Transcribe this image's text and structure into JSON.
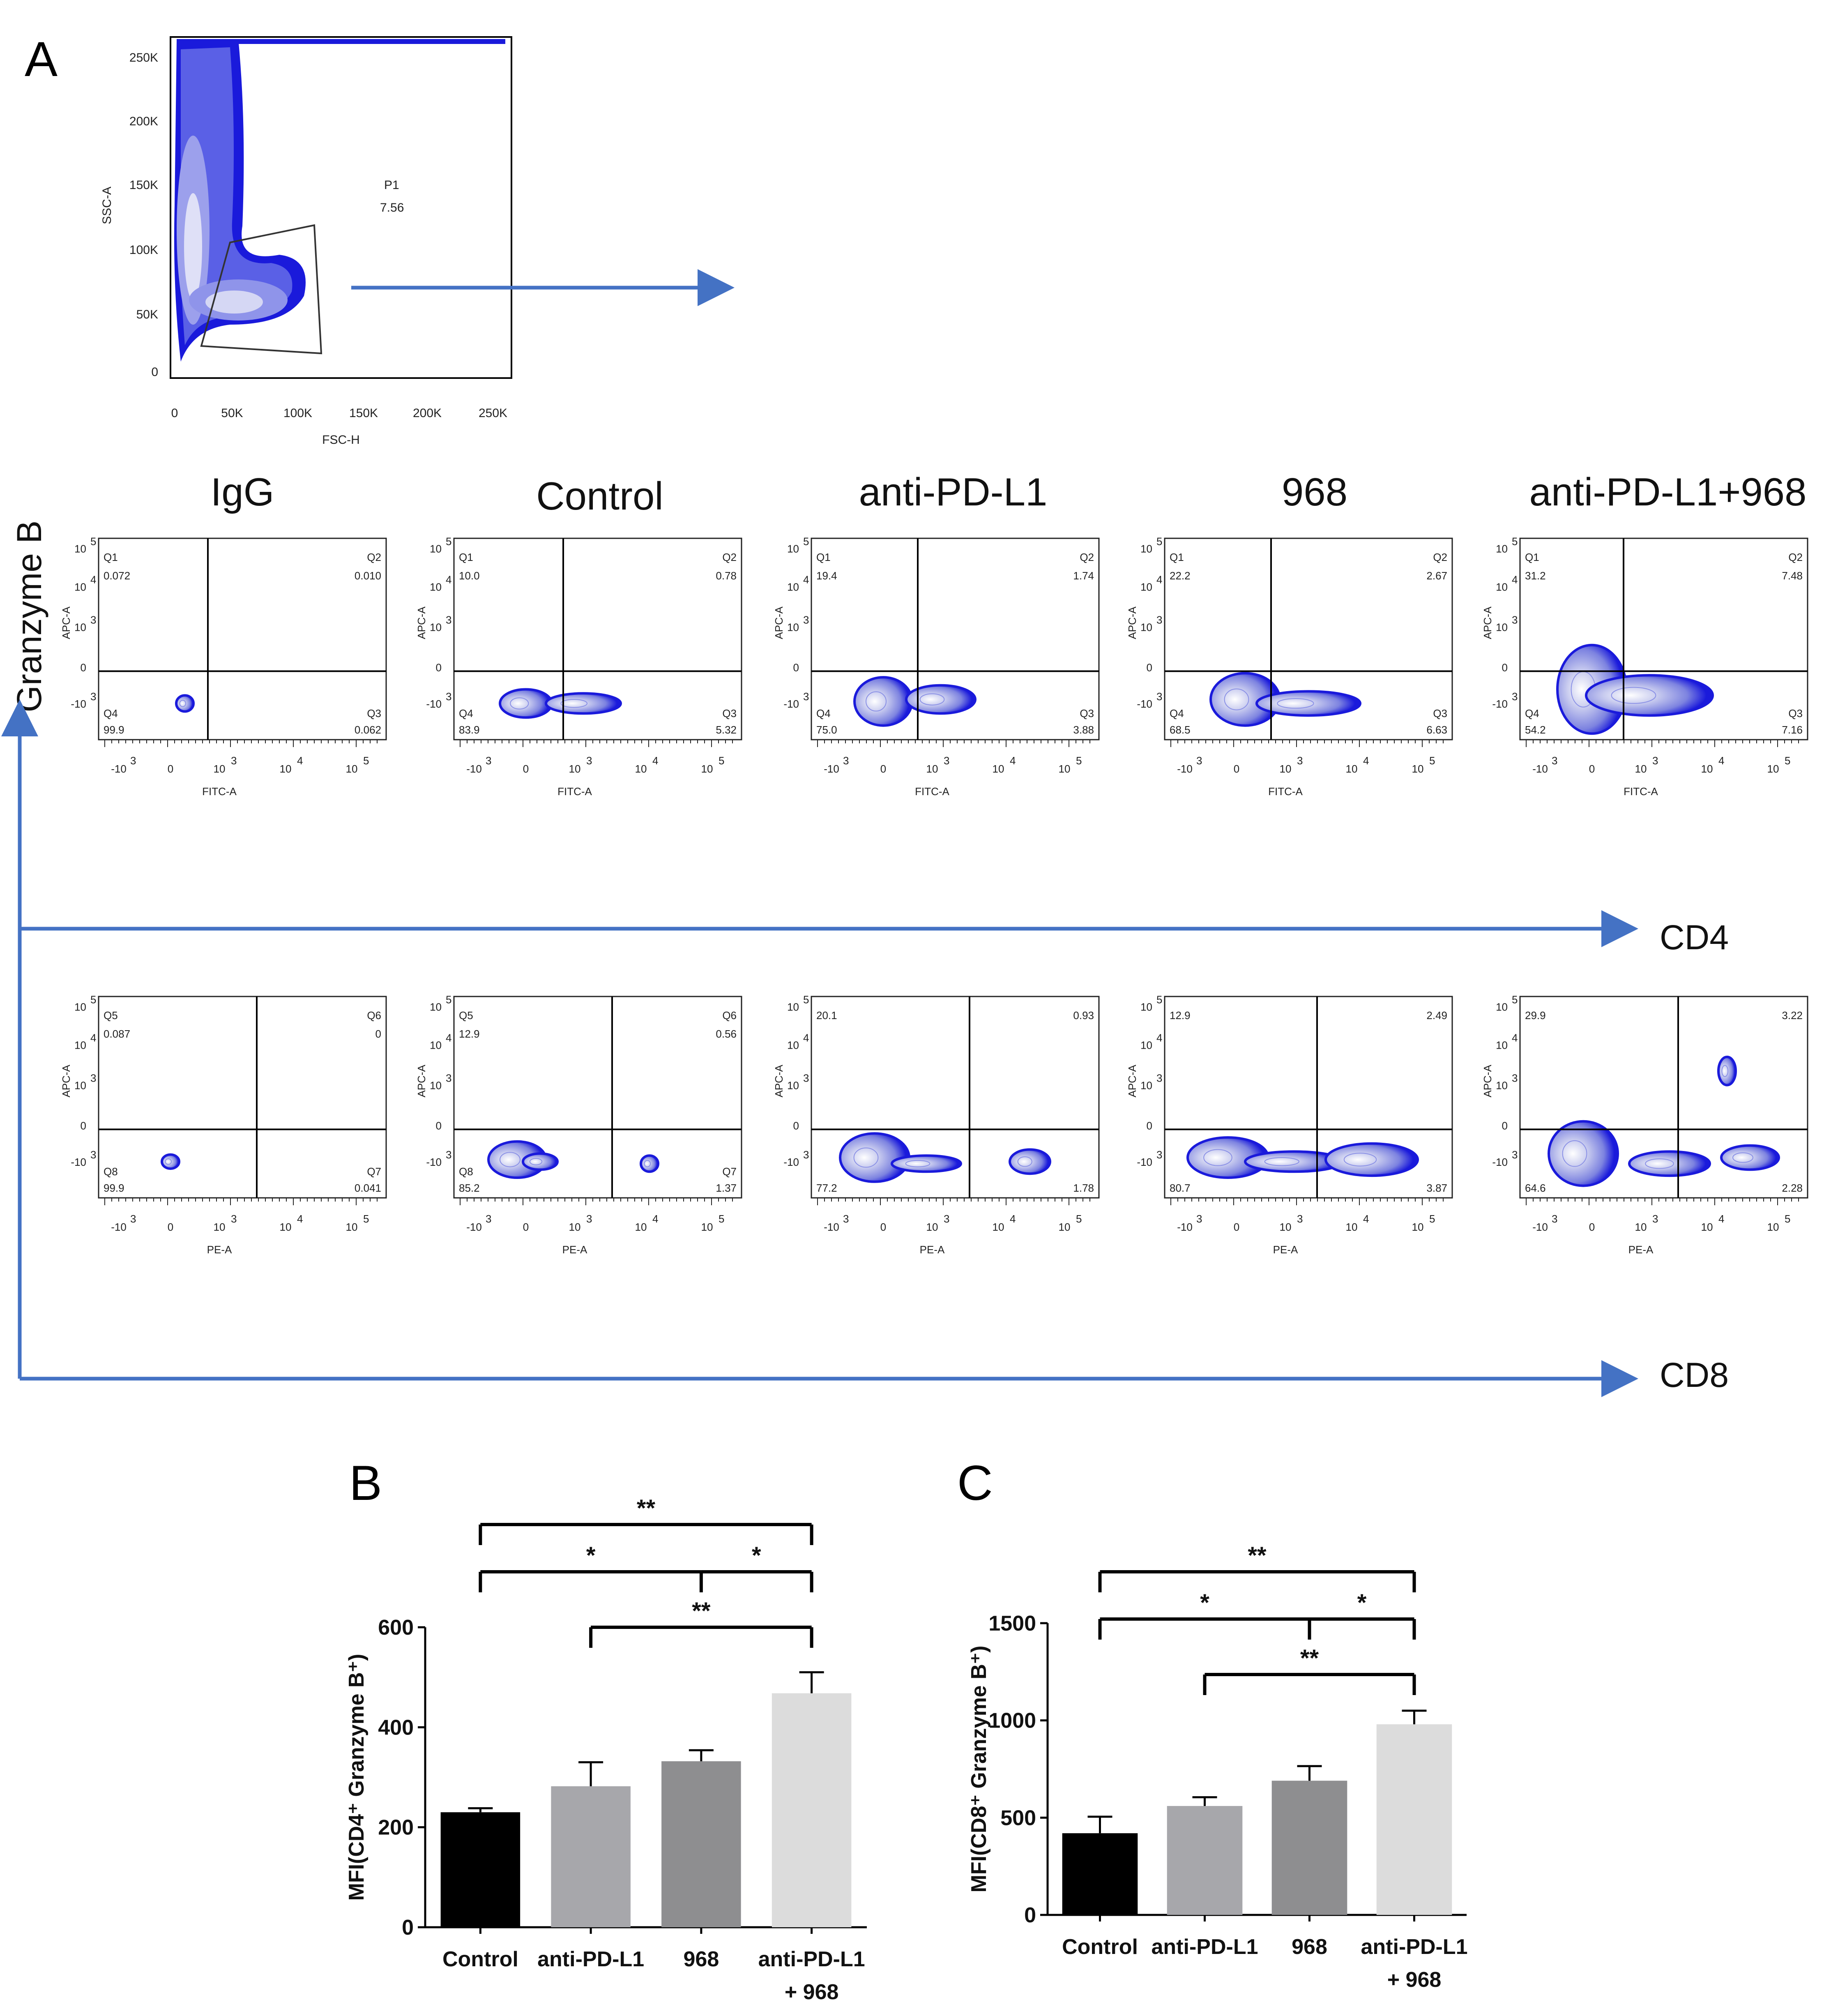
{
  "colors": {
    "arrow": "#4472c4",
    "density": "#1a1adb",
    "density_light": "#c9ccef",
    "axis": "#000000"
  },
  "panelA": {
    "letter": "A",
    "gate_plot": {
      "ylabel": "SSC-A",
      "xlabel": "FSC-H",
      "yticks": [
        "250K",
        "200K",
        "150K",
        "100K",
        "50K",
        "0"
      ],
      "xticks": [
        "0",
        "50K",
        "100K",
        "150K",
        "200K",
        "250K"
      ],
      "gate_name": "P1",
      "gate_value": "7.56"
    },
    "group_titles": [
      "IgG",
      "Control",
      "anti-PD-L1",
      "968",
      "anti-PD-L1+968"
    ],
    "y_marker": "Granzyme B",
    "cd4_marker": "CD4",
    "cd8_marker": "CD8",
    "plot_axis": {
      "y_ticks": [
        "10",
        "10",
        "10",
        "0",
        "-10"
      ],
      "y_exps": [
        "5",
        "4",
        "3",
        "",
        "3"
      ],
      "x_ticks": [
        "-10",
        "0",
        "10",
        "10",
        "10"
      ],
      "x_exps": [
        "3",
        "",
        "3",
        "4",
        "5"
      ]
    },
    "cd4_plots": [
      {
        "ylabel": "APC-A",
        "xlabel": "FITC-A",
        "tl_name": "Q1",
        "tl": "0.072",
        "tr_name": "Q2",
        "tr": "0.010",
        "bl_name": "Q4",
        "bl": "99.9",
        "br_name": "Q3",
        "br": "0.062"
      },
      {
        "ylabel": "APC-A",
        "xlabel": "FITC-A",
        "tl_name": "Q1",
        "tl": "10.0",
        "tr_name": "Q2",
        "tr": "0.78",
        "bl_name": "Q4",
        "bl": "83.9",
        "br_name": "Q3",
        "br": "5.32"
      },
      {
        "ylabel": "APC-A",
        "xlabel": "FITC-A",
        "tl_name": "Q1",
        "tl": "19.4",
        "tr_name": "Q2",
        "tr": "1.74",
        "bl_name": "Q4",
        "bl": "75.0",
        "br_name": "Q3",
        "br": "3.88"
      },
      {
        "ylabel": "APC-A",
        "xlabel": "FITC-A",
        "tl_name": "Q1",
        "tl": "22.2",
        "tr_name": "Q2",
        "tr": "2.67",
        "bl_name": "Q4",
        "bl": "68.5",
        "br_name": "Q3",
        "br": "6.63"
      },
      {
        "ylabel": "APC-A",
        "xlabel": "FITC-A",
        "tl_name": "Q1",
        "tl": "31.2",
        "tr_name": "Q2",
        "tr": "7.48",
        "bl_name": "Q4",
        "bl": "54.2",
        "br_name": "Q3",
        "br": "7.16"
      }
    ],
    "cd8_plots": [
      {
        "ylabel": "APC-A",
        "xlabel": "PE-A",
        "tl_name": "Q5",
        "tl": "0.087",
        "tr_name": "Q6",
        "tr": "0",
        "bl_name": "Q8",
        "bl": "99.9",
        "br_name": "Q7",
        "br": "0.041"
      },
      {
        "ylabel": "APC-A",
        "xlabel": "PE-A",
        "tl_name": "Q5",
        "tl": "12.9",
        "tr_name": "Q6",
        "tr": "0.56",
        "bl_name": "Q8",
        "bl": "85.2",
        "br_name": "Q7",
        "br": "1.37"
      },
      {
        "ylabel": "APC-A",
        "xlabel": "PE-A",
        "tl_name": "",
        "tl": "20.1",
        "tr_name": "",
        "tr": "0.93",
        "bl_name": "",
        "bl": "77.2",
        "br_name": "",
        "br": "1.78"
      },
      {
        "ylabel": "APC-A",
        "xlabel": "PE-A",
        "tl_name": "",
        "tl": "12.9",
        "tr_name": "",
        "tr": "2.49",
        "bl_name": "",
        "bl": "80.7",
        "br_name": "",
        "br": "3.87"
      },
      {
        "ylabel": "APC-A",
        "xlabel": "PE-A",
        "tl_name": "",
        "tl": "29.9",
        "tr_name": "",
        "tr": "3.22",
        "bl_name": "",
        "bl": "64.6",
        "br_name": "",
        "br": "2.28"
      }
    ]
  },
  "chart_data": [
    {
      "panel": "B",
      "type": "bar",
      "categories": [
        "Control",
        "anti-PD-L1",
        "968",
        "anti-PD-L1 + 968"
      ],
      "category_lines": [
        [
          "Control"
        ],
        [
          "anti-PD-L1"
        ],
        [
          "968"
        ],
        [
          "anti-PD-L1",
          "+ 968"
        ]
      ],
      "values": [
        230,
        282,
        332,
        468
      ],
      "errors": [
        8,
        48,
        22,
        42
      ],
      "bar_colors": [
        "#000000",
        "#a7a7ab",
        "#8e8e90",
        "#dcdcdc"
      ],
      "ylabel": "MFI(CD4⁺ Granzyme B⁺)",
      "ylim": [
        0,
        600
      ],
      "yticks": [
        0,
        200,
        400,
        600
      ],
      "significance": [
        {
          "from": 0,
          "to": 3,
          "label": "**",
          "level": 3
        },
        {
          "from": 0,
          "to": 2,
          "label": "*",
          "level": 2
        },
        {
          "from": 2,
          "to": 3,
          "label": "*",
          "level": 2
        },
        {
          "from": 1,
          "to": 3,
          "label": "**",
          "level": 1
        }
      ]
    },
    {
      "panel": "C",
      "type": "bar",
      "categories": [
        "Control",
        "anti-PD-L1",
        "968",
        "anti-PD-L1 + 968"
      ],
      "category_lines": [
        [
          "Control"
        ],
        [
          "anti-PD-L1"
        ],
        [
          "968"
        ],
        [
          "anti-PD-L1",
          "+ 968"
        ]
      ],
      "values": [
        420,
        560,
        690,
        980
      ],
      "errors": [
        85,
        45,
        75,
        70
      ],
      "bar_colors": [
        "#000000",
        "#a7a7ab",
        "#8e8e90",
        "#dcdcdc"
      ],
      "ylabel": "MFI(CD8⁺ Granzyme B⁺)",
      "ylim": [
        0,
        1500
      ],
      "yticks": [
        0,
        500,
        1000,
        1500
      ],
      "significance": [
        {
          "from": 0,
          "to": 3,
          "label": "**",
          "level": 3
        },
        {
          "from": 0,
          "to": 2,
          "label": "*",
          "level": 2
        },
        {
          "from": 2,
          "to": 3,
          "label": "*",
          "level": 2
        },
        {
          "from": 1,
          "to": 3,
          "label": "**",
          "level": 1
        }
      ]
    }
  ]
}
